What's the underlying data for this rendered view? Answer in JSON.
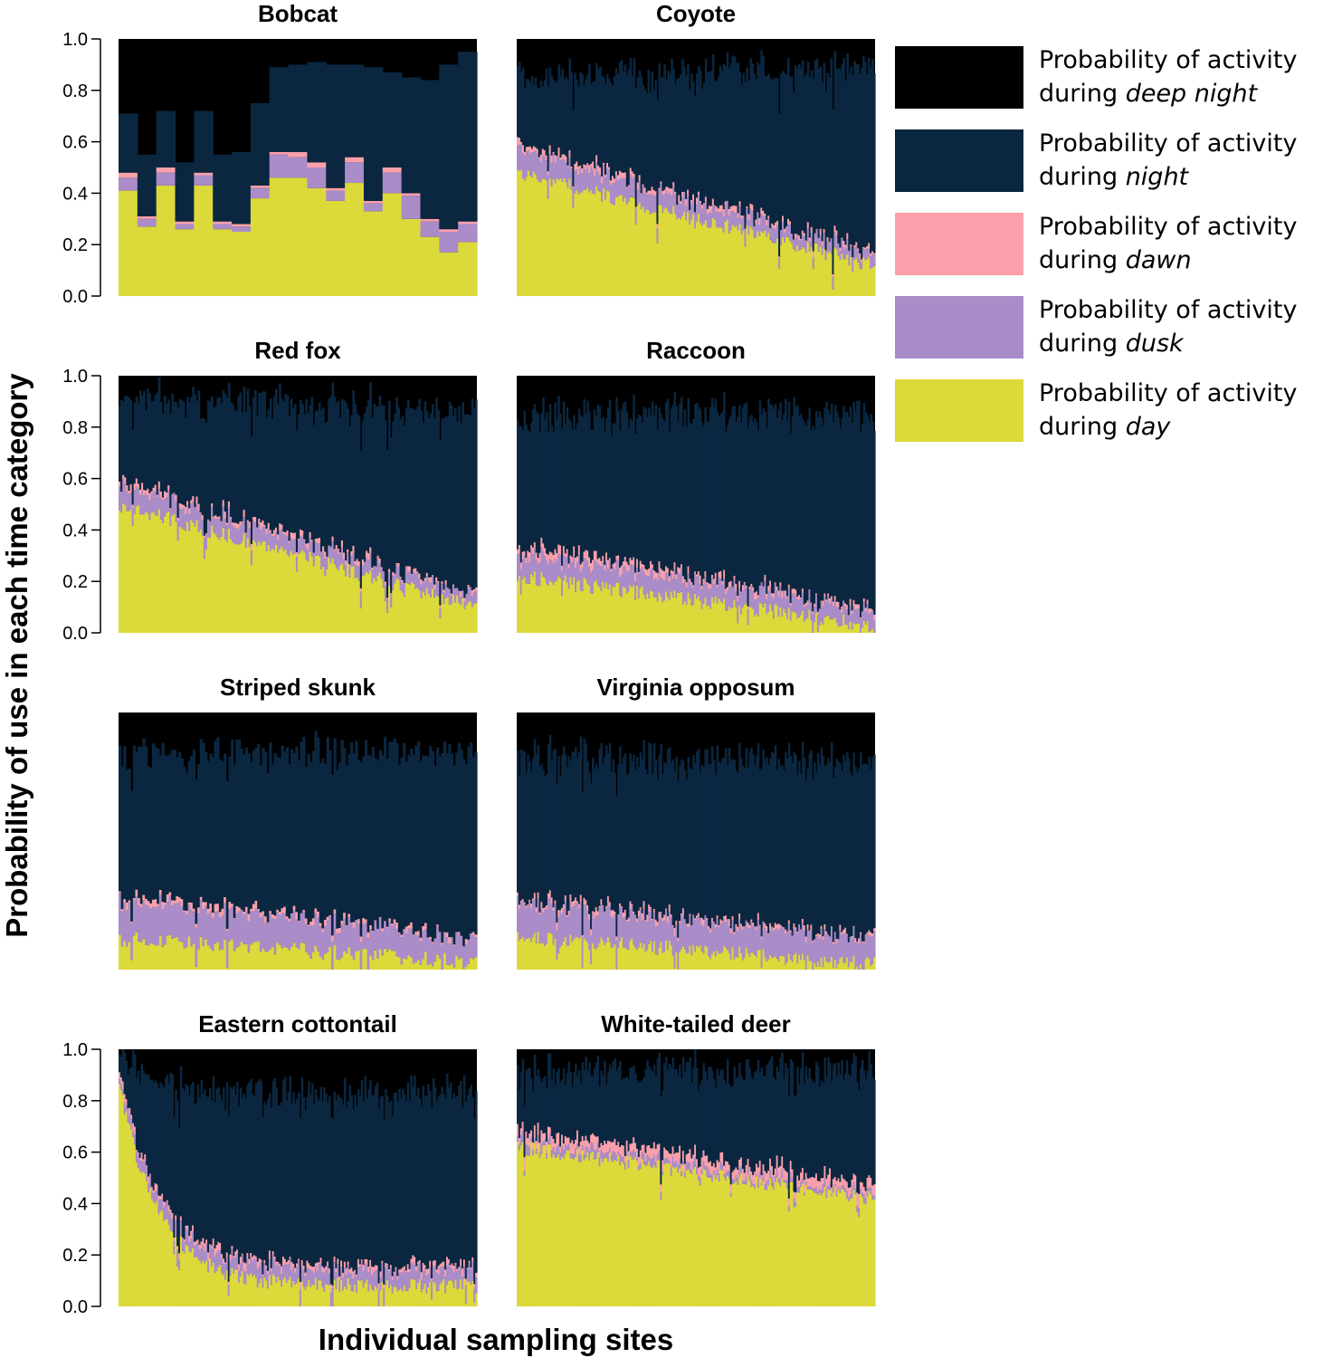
{
  "chart_data": {
    "type": "stacked-bar",
    "ylabel": "Probability of use in each time category",
    "xlabel": "Individual sampling sites",
    "ylim": [
      0,
      1
    ],
    "yticks": [
      "0.0",
      "0.2",
      "0.4",
      "0.6",
      "0.8",
      "1.0"
    ],
    "stack_order_bottom_to_top": [
      "day",
      "dusk",
      "dawn",
      "night",
      "deep night"
    ],
    "legend": [
      {
        "key": "deep night",
        "prefix": "Probability of activity",
        "during": "during ",
        "period": "deep night",
        "color": "#000000"
      },
      {
        "key": "night",
        "prefix": "Probability of activity",
        "during": "during ",
        "period": "night",
        "color": "#0b2740"
      },
      {
        "key": "dawn",
        "prefix": "Probability of activity",
        "during": "during ",
        "period": "dawn",
        "color": "#f9a0ab"
      },
      {
        "key": "dusk",
        "prefix": "Probability of activity",
        "during": "during ",
        "period": "dusk",
        "color": "#a98cc8"
      },
      {
        "key": "day",
        "prefix": "Probability of activity",
        "during": "during ",
        "period": "day",
        "color": "#dcd93a"
      }
    ],
    "panels": [
      {
        "title": "Bobcat",
        "y_axis_shown": true,
        "n_sites": 19,
        "series": {
          "day": [
            0.41,
            0.27,
            0.43,
            0.26,
            0.43,
            0.26,
            0.25,
            0.38,
            0.46,
            0.46,
            0.42,
            0.37,
            0.44,
            0.33,
            0.4,
            0.3,
            0.23,
            0.17,
            0.21
          ],
          "dusk": [
            0.05,
            0.03,
            0.05,
            0.02,
            0.04,
            0.02,
            0.02,
            0.04,
            0.09,
            0.08,
            0.08,
            0.04,
            0.08,
            0.03,
            0.08,
            0.09,
            0.06,
            0.08,
            0.07
          ],
          "dawn": [
            0.02,
            0.01,
            0.02,
            0.01,
            0.01,
            0.01,
            0.01,
            0.01,
            0.01,
            0.02,
            0.02,
            0.01,
            0.02,
            0.01,
            0.02,
            0.01,
            0.01,
            0.01,
            0.01
          ],
          "night": [
            0.23,
            0.24,
            0.22,
            0.23,
            0.24,
            0.26,
            0.28,
            0.32,
            0.33,
            0.34,
            0.39,
            0.48,
            0.36,
            0.52,
            0.37,
            0.45,
            0.54,
            0.64,
            0.66
          ]
        }
      },
      {
        "title": "Coyote",
        "y_axis_shown": false,
        "n_sites": 200,
        "series": {
          "day": {
            "start": 0.48,
            "end": 0.12
          },
          "dusk": {
            "start": 0.09,
            "end": 0.04
          },
          "dawn": {
            "start": 0.02,
            "end": 0.01
          },
          "night": {
            "start": 0.26,
            "end": 0.72
          }
        }
      },
      {
        "title": "Red fox",
        "y_axis_shown": true,
        "n_sites": 190,
        "series": {
          "day": {
            "start": 0.5,
            "end": 0.1
          },
          "dusk": {
            "start": 0.08,
            "end": 0.04
          },
          "dawn": {
            "start": 0.02,
            "end": 0.01
          },
          "night": {
            "start": 0.32,
            "end": 0.71
          }
        }
      },
      {
        "title": "Raccoon",
        "y_axis_shown": false,
        "n_sites": 210,
        "series": {
          "day": {
            "start": 0.22,
            "end": 0.03
          },
          "dusk": {
            "start": 0.09,
            "end": 0.06
          },
          "dawn": {
            "start": 0.03,
            "end": 0.01
          },
          "night": {
            "start": 0.5,
            "end": 0.76
          }
        }
      },
      {
        "title": "Striped skunk",
        "y_axis_shown": false,
        "n_sites": 150,
        "series": {
          "day": {
            "start": 0.12,
            "end": 0.03
          },
          "dusk": {
            "start": 0.15,
            "end": 0.09
          },
          "dawn": {
            "start": 0.02,
            "end": 0.01
          },
          "night": {
            "start": 0.55,
            "end": 0.72
          }
        }
      },
      {
        "title": "Virginia opposum",
        "y_axis_shown": false,
        "n_sites": 210,
        "series": {
          "day": {
            "start": 0.13,
            "end": 0.02
          },
          "dusk": {
            "start": 0.13,
            "end": 0.1
          },
          "dawn": {
            "start": 0.02,
            "end": 0.01
          },
          "night": {
            "start": 0.55,
            "end": 0.68
          }
        }
      },
      {
        "title": "Eastern cottontail",
        "y_axis_shown": true,
        "n_sites": 210,
        "series": {
          "day": {
            "start": 0.86,
            "end": 0.08
          },
          "dusk": {
            "start": 0.03,
            "end": 0.06
          },
          "dawn": {
            "start": 0.02,
            "end": 0.02
          },
          "night": {
            "start": 0.06,
            "end": 0.67
          }
        }
      },
      {
        "title": "White-tailed deer",
        "y_axis_shown": false,
        "n_sites": 210,
        "series": {
          "day": {
            "start": 0.62,
            "end": 0.42
          },
          "dusk": {
            "start": 0.03,
            "end": 0.02
          },
          "dawn": {
            "start": 0.04,
            "end": 0.04
          },
          "night": {
            "start": 0.22,
            "end": 0.45
          }
        }
      }
    ]
  }
}
